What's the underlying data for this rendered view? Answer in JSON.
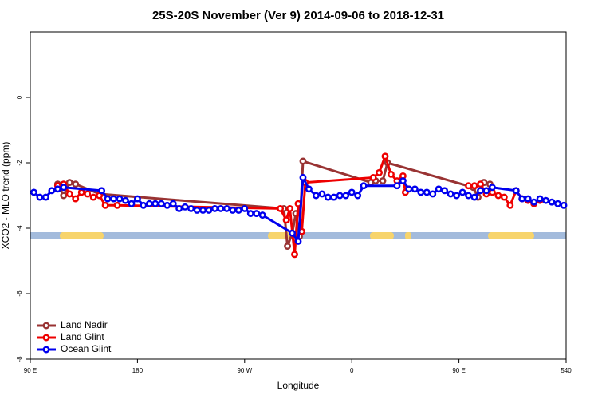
{
  "chart_data": {
    "type": "line",
    "title": "25S-20S November (Ver 9)   2014-09-06 to 2018-12-31",
    "x_label": "Longitude",
    "y_label": "XCO2 - MLO trend (ppm)",
    "xlim": [
      90,
      540
    ],
    "ylim": [
      -8,
      2
    ],
    "xticks": [
      {
        "value": 90,
        "label": "90 E"
      },
      180,
      {
        "value": 270,
        "label": "90 W"
      },
      {
        "value": 360,
        "label": "0"
      },
      {
        "value": 450,
        "label": "90 E"
      },
      540
    ],
    "yticks": [
      -8,
      -6,
      -4,
      -2,
      0
    ],
    "legend": "bottom-left",
    "series": [
      {
        "name": "Land Nadir",
        "color": "#993333",
        "x": [
          113,
          118,
          123,
          128,
          148,
          303,
          306,
          310,
          313,
          316,
          319,
          376,
          380,
          386,
          390,
          462,
          466,
          471,
          476
        ],
        "values": [
          -2.65,
          -3.0,
          -2.6,
          -2.65,
          -2.95,
          -3.4,
          -4.55,
          -4.15,
          -3.55,
          -4.25,
          -1.95,
          -2.6,
          -2.55,
          -2.55,
          -2.0,
          -2.75,
          -3.05,
          -2.6,
          -2.65
        ]
      },
      {
        "name": "Land Glint",
        "color": "#ee0000",
        "x": [
          113,
          118,
          123,
          128,
          133,
          138,
          143,
          148,
          153,
          163,
          300,
          305,
          308,
          312,
          315,
          318,
          321,
          378,
          383,
          388,
          393,
          398,
          403,
          405,
          415,
          458,
          463,
          468,
          473,
          478,
          483,
          488,
          493,
          498,
          503,
          508,
          513,
          518
        ],
        "values": [
          -2.7,
          -2.65,
          -2.95,
          -3.1,
          -2.9,
          -2.95,
          -3.05,
          -3.0,
          -3.3,
          -3.3,
          -3.4,
          -3.75,
          -3.4,
          -4.8,
          -3.25,
          -4.1,
          -2.6,
          -2.45,
          -2.3,
          -1.8,
          -2.35,
          -2.55,
          -2.4,
          -2.9,
          null,
          -2.7,
          -2.7,
          -2.65,
          -2.95,
          -2.9,
          -3.0,
          -3.05,
          -3.3,
          -2.85,
          -3.1,
          -3.15,
          -3.25,
          -3.15
        ]
      },
      {
        "name": "Ocean Glint",
        "color": "#0000ee",
        "x": [
          93,
          98,
          103,
          108,
          113,
          118,
          150,
          155,
          160,
          165,
          170,
          175,
          180,
          185,
          190,
          195,
          200,
          205,
          210,
          215,
          220,
          225,
          230,
          235,
          240,
          245,
          250,
          255,
          260,
          265,
          270,
          275,
          280,
          285,
          310,
          315,
          319,
          324,
          330,
          335,
          340,
          345,
          350,
          355,
          360,
          365,
          370,
          398,
          403,
          408,
          413,
          418,
          423,
          428,
          433,
          438,
          443,
          448,
          453,
          458,
          463,
          468,
          473,
          478,
          498,
          503,
          508,
          513,
          518,
          523,
          528,
          533,
          538
        ],
        "values": [
          -2.9,
          -3.05,
          -3.05,
          -2.85,
          -2.8,
          -2.75,
          -2.85,
          -3.1,
          -3.1,
          -3.1,
          -3.15,
          -3.25,
          -3.1,
          -3.3,
          -3.25,
          -3.25,
          -3.25,
          -3.3,
          -3.25,
          -3.4,
          -3.35,
          -3.4,
          -3.45,
          -3.45,
          -3.45,
          -3.4,
          -3.4,
          -3.4,
          -3.45,
          -3.45,
          -3.4,
          -3.55,
          -3.55,
          -3.6,
          -4.15,
          -4.4,
          -2.45,
          -2.8,
          -3.0,
          -2.95,
          -3.05,
          -3.05,
          -3.0,
          -3.0,
          -2.9,
          -3.0,
          -2.7,
          -2.7,
          -2.55,
          -2.8,
          -2.8,
          -2.9,
          -2.9,
          -2.95,
          -2.8,
          -2.85,
          -2.95,
          -3.0,
          -2.9,
          -3.0,
          -3.05,
          -2.85,
          -2.85,
          -2.75,
          -2.85,
          -3.1,
          -3.1,
          -3.2,
          -3.1,
          -3.15,
          -3.2,
          -3.25,
          -3.3
        ]
      }
    ]
  }
}
